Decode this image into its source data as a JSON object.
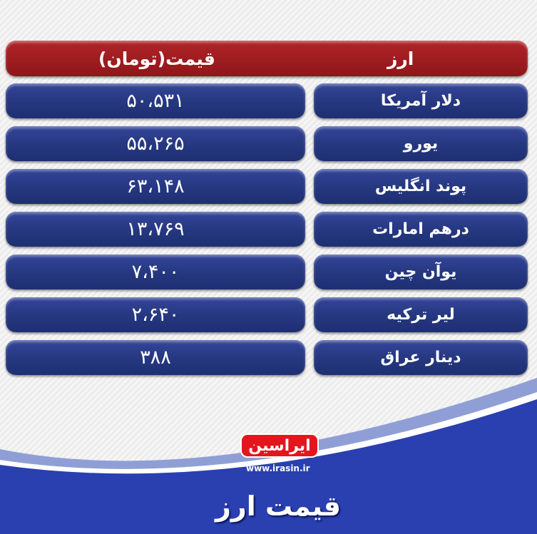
{
  "header": {
    "price_label": "قیمت(تومان)",
    "currency_label": "ارز"
  },
  "rows": [
    {
      "currency": "دلار آمریکا",
      "price": "۵۰،۵۳۱"
    },
    {
      "currency": "یورو",
      "price": "۵۵،۲۶۵"
    },
    {
      "currency": "پوند انگلیس",
      "price": "۶۳،۱۴۸"
    },
    {
      "currency": "درهم امارات",
      "price": "۱۳،۷۶۹"
    },
    {
      "currency": "یوآن چین",
      "price": "۷،۴۰۰"
    },
    {
      "currency": "لیر ترکیه",
      "price": "۲،۶۴۰"
    },
    {
      "currency": "دینار عراق",
      "price": "۳۸۸"
    }
  ],
  "footer": {
    "logo": "ایراسین",
    "url": "www.irasin.ir",
    "title": "قیمت ارز"
  },
  "colors": {
    "header": "#9c1b1f",
    "cell": "#2a3b88",
    "footer": "#2a40b0"
  }
}
